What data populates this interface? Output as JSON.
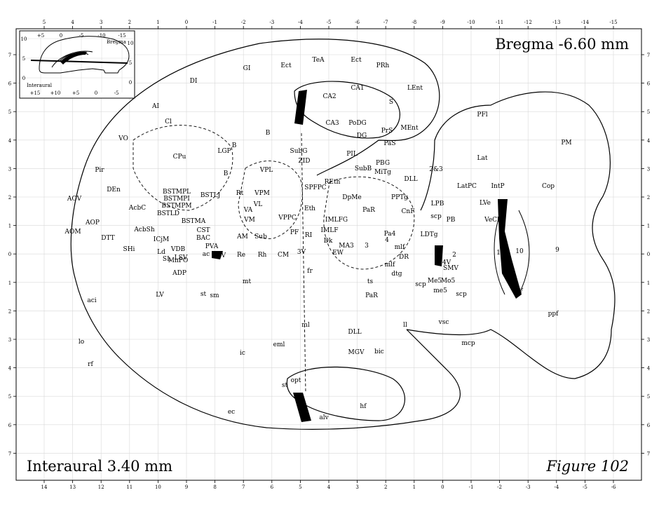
{
  "header": {
    "bregma": "Bregma -6.60 mm"
  },
  "footer": {
    "interaural": "Interaural 3.40 mm",
    "figure": "Figure 102"
  },
  "axes": {
    "top": [
      "5",
      "4",
      "3",
      "2",
      "1",
      "0",
      "-1",
      "-2",
      "-3",
      "-4",
      "-5",
      "-6",
      "-7",
      "-8",
      "-9",
      "-10",
      "-11",
      "-12",
      "-13",
      "-14",
      "-15"
    ],
    "bottom": [
      "14",
      "13",
      "12",
      "11",
      "10",
      "9",
      "8",
      "7",
      "6",
      "5",
      "4",
      "3",
      "2",
      "1",
      "0",
      "-1",
      "-2",
      "-3",
      "-4",
      "-5",
      "-6"
    ],
    "left": [
      "7",
      "6",
      "5",
      "4",
      "3",
      "2",
      "1",
      "0",
      "1",
      "2",
      "3",
      "4",
      "5",
      "6",
      "7"
    ],
    "right": [
      "7",
      "6",
      "5",
      "4",
      "3",
      "2",
      "1",
      "0",
      "1",
      "2",
      "3",
      "4",
      "5",
      "6",
      "7"
    ]
  },
  "inset": {
    "top_ticks": [
      "+5",
      "0",
      "-5",
      "-10",
      "-15"
    ],
    "bottom_ticks": [
      "+15",
      "+10",
      "+5",
      "0",
      "-5"
    ],
    "left_ticks": [
      "10",
      "5",
      "0"
    ],
    "right_ticks": [
      "10",
      "5",
      "0"
    ],
    "bregma_label": "Bregma",
    "interaural_label": "Interaural"
  },
  "regions": [
    {
      "label": "GI"
    },
    {
      "label": "Ect"
    },
    {
      "label": "TeA"
    },
    {
      "label": "Ect"
    },
    {
      "label": "PRh"
    },
    {
      "label": "DI"
    },
    {
      "label": "LEnt"
    },
    {
      "label": "AI"
    },
    {
      "label": "CA1"
    },
    {
      "label": "CA2"
    },
    {
      "label": "S"
    },
    {
      "label": "MEnt"
    },
    {
      "label": "CA3"
    },
    {
      "label": "PoDG"
    },
    {
      "label": "DG"
    },
    {
      "label": "Cl"
    },
    {
      "label": "PrS"
    },
    {
      "label": "PaS"
    },
    {
      "label": "B"
    },
    {
      "label": "VO"
    },
    {
      "label": "SubG"
    },
    {
      "label": "LGP"
    },
    {
      "label": "CPu"
    },
    {
      "label": "B"
    },
    {
      "label": "ZID"
    },
    {
      "label": "PIL"
    },
    {
      "label": "SubB"
    },
    {
      "label": "PBG"
    },
    {
      "label": "MiTg"
    },
    {
      "label": "2&3"
    },
    {
      "label": "DLL"
    },
    {
      "label": "PFl"
    },
    {
      "label": "PM"
    },
    {
      "label": "Lat"
    },
    {
      "label": "Cop"
    },
    {
      "label": "Pir"
    },
    {
      "label": "VPL"
    },
    {
      "label": "B"
    },
    {
      "label": "DEn"
    },
    {
      "label": "Rt"
    },
    {
      "label": "VPM"
    },
    {
      "label": "SPFPC"
    },
    {
      "label": "REth"
    },
    {
      "label": "DpMe"
    },
    {
      "label": "PPTg"
    },
    {
      "label": "LatPC"
    },
    {
      "label": "IntP"
    },
    {
      "label": "AOV"
    },
    {
      "label": "BSTMPL"
    },
    {
      "label": "BSTMPI"
    },
    {
      "label": "BSTMPM"
    },
    {
      "label": "BSTLJ"
    },
    {
      "label": "BSTLD"
    },
    {
      "label": "AcbC"
    },
    {
      "label": "VA"
    },
    {
      "label": "VL"
    },
    {
      "label": "Eth"
    },
    {
      "label": "PaR"
    },
    {
      "label": "CnF"
    },
    {
      "label": "LPB"
    },
    {
      "label": "LVe"
    },
    {
      "label": "AOP"
    },
    {
      "label": "BSTMA"
    },
    {
      "label": "VM"
    },
    {
      "label": "VPPC"
    },
    {
      "label": "IMLFG"
    },
    {
      "label": "scp"
    },
    {
      "label": "PB"
    },
    {
      "label": "VeCb"
    },
    {
      "label": "AOM"
    },
    {
      "label": "AcbSh"
    },
    {
      "label": "CST"
    },
    {
      "label": "AM"
    },
    {
      "label": "Sub"
    },
    {
      "label": "PF"
    },
    {
      "label": "RI"
    },
    {
      "label": "IMLF"
    },
    {
      "label": "Pa4"
    },
    {
      "label": "LDTg"
    },
    {
      "label": "DTT"
    },
    {
      "label": "ICjM"
    },
    {
      "label": "BAC"
    },
    {
      "label": "PVA"
    },
    {
      "label": "Dk"
    },
    {
      "label": "4"
    },
    {
      "label": "SHi"
    },
    {
      "label": "LSV"
    },
    {
      "label": "VDB"
    },
    {
      "label": "ac"
    },
    {
      "label": "3V"
    },
    {
      "label": "Re"
    },
    {
      "label": "Rh"
    },
    {
      "label": "CM"
    },
    {
      "label": "3V"
    },
    {
      "label": "EW"
    },
    {
      "label": "MA3"
    },
    {
      "label": "3"
    },
    {
      "label": "mlf"
    },
    {
      "label": "2"
    },
    {
      "label": "1"
    },
    {
      "label": "10"
    },
    {
      "label": "9"
    },
    {
      "label": "Ld"
    },
    {
      "label": "SL"
    },
    {
      "label": "MnPO"
    },
    {
      "label": "DR"
    },
    {
      "label": "4V"
    },
    {
      "label": "SMV"
    },
    {
      "label": "ADP"
    },
    {
      "label": "fr"
    },
    {
      "label": "mlf"
    },
    {
      "label": "dtg"
    },
    {
      "label": "scp"
    },
    {
      "label": "Me5"
    },
    {
      "label": "Mo5"
    },
    {
      "label": "mt"
    },
    {
      "label": "ts"
    },
    {
      "label": "me5"
    },
    {
      "label": "4V"
    },
    {
      "label": "LV"
    },
    {
      "label": "st"
    },
    {
      "label": "sm"
    },
    {
      "label": "PaR"
    },
    {
      "label": "scp"
    },
    {
      "label": "aci"
    },
    {
      "label": "ppf"
    },
    {
      "label": "ll"
    },
    {
      "label": "vsc"
    },
    {
      "label": "ml"
    },
    {
      "label": "DLL"
    },
    {
      "label": "lo"
    },
    {
      "label": "eml"
    },
    {
      "label": "mcp"
    },
    {
      "label": "MGV"
    },
    {
      "label": "bic"
    },
    {
      "label": "rf"
    },
    {
      "label": "ic"
    },
    {
      "label": "opt"
    },
    {
      "label": "st"
    },
    {
      "label": "LV"
    },
    {
      "label": "hf"
    },
    {
      "label": "ec"
    },
    {
      "label": "alv"
    }
  ],
  "colors": {
    "line": "#000000",
    "grid": "#d8d8d8",
    "background": "#ffffff"
  }
}
